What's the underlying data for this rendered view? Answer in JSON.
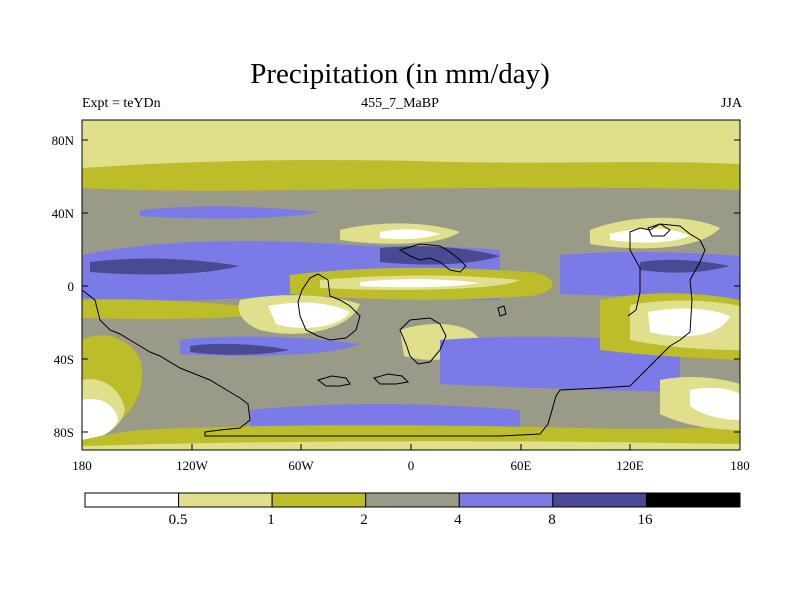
{
  "title": "Precipitation (in mm/day)",
  "subtitle_left": "Expt = teYDn",
  "subtitle_center": "455_7_MaBP",
  "subtitle_right": "JJA",
  "x_ticks": [
    "180",
    "120W",
    "60W",
    "0",
    "60E",
    "120E",
    "180"
  ],
  "y_ticks": [
    "80N",
    "40N",
    "0",
    "40S",
    "80S"
  ],
  "colorbar": {
    "labels": [
      "0.5",
      "1",
      "2",
      "4",
      "8",
      "16"
    ],
    "colors": [
      "#ffffff",
      "#e0e08c",
      "#bdbd2a",
      "#9a9a88",
      "#7b7be8",
      "#4a4a92",
      "#000000"
    ]
  }
}
